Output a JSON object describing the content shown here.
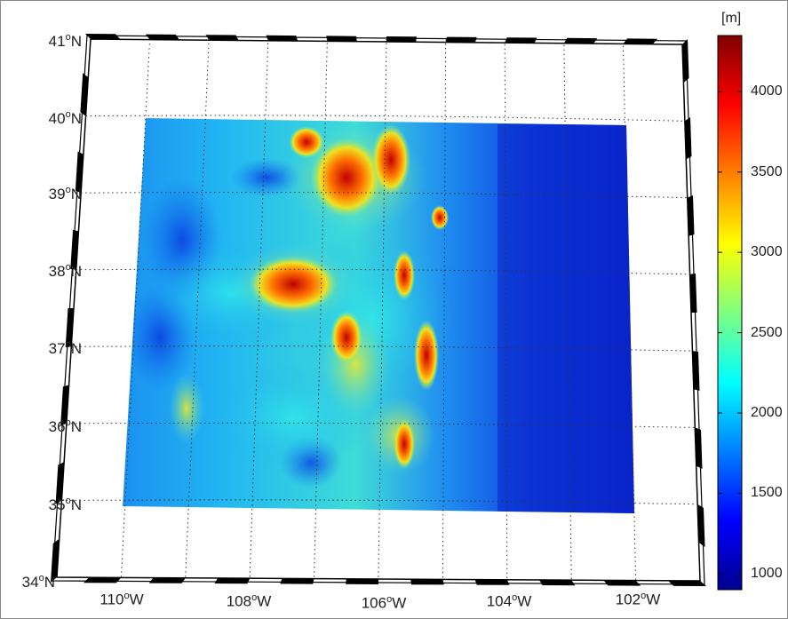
{
  "map": {
    "lat_labels": [
      {
        "deg": "41",
        "hem": "N"
      },
      {
        "deg": "40",
        "hem": "N"
      },
      {
        "deg": "39",
        "hem": "N"
      },
      {
        "deg": "38",
        "hem": "N"
      },
      {
        "deg": "37",
        "hem": "N"
      },
      {
        "deg": "36",
        "hem": "N"
      },
      {
        "deg": "35",
        "hem": "N"
      },
      {
        "deg": "34",
        "hem": "N"
      }
    ],
    "lon_labels": [
      {
        "deg": "110",
        "hem": "W"
      },
      {
        "deg": "108",
        "hem": "W"
      },
      {
        "deg": "106",
        "hem": "W"
      },
      {
        "deg": "104",
        "hem": "W"
      },
      {
        "deg": "102",
        "hem": "W"
      }
    ],
    "degree_symbol": "o"
  },
  "colorbar": {
    "unit": "[m]",
    "ticks": [
      "4000",
      "3500",
      "3000",
      "2500",
      "2000",
      "1500",
      "1000"
    ],
    "colormap": [
      "#00008f",
      "#0000ff",
      "#0080ff",
      "#00ffff",
      "#80ff80",
      "#ffff00",
      "#ff8000",
      "#ff0000",
      "#800000"
    ]
  },
  "colors": {
    "low": "#0a1fc8",
    "mid": "#18b8f0",
    "high_mid": "#e8e820",
    "peak": "#c80000"
  }
}
